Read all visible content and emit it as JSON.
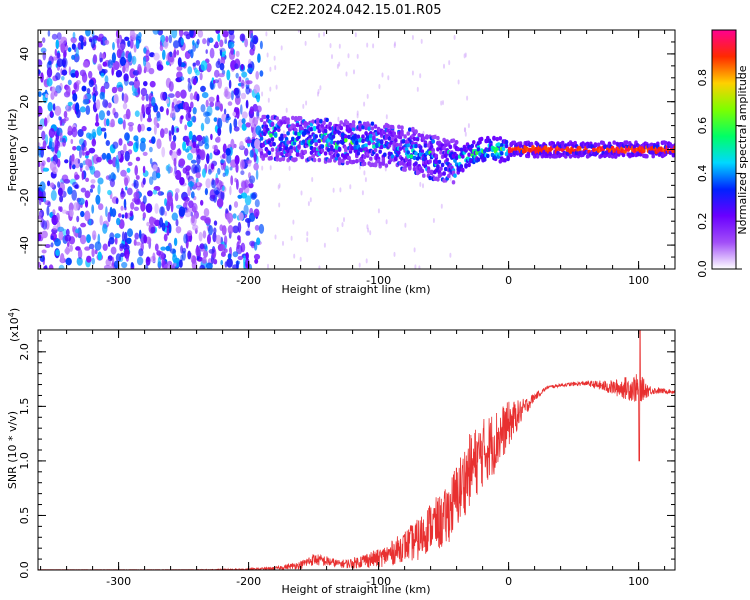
{
  "title": "C2E2.2024.042.15.01.R05",
  "chart_data": [
    {
      "type": "heatmap",
      "xlabel": "Height of straight line (km)",
      "ylabel": "Frequency (Hz)",
      "xlim": [
        -362,
        128
      ],
      "ylim": [
        -50,
        50
      ],
      "xticks": [
        -300,
        -200,
        -100,
        0,
        100
      ],
      "yticks": [
        -40,
        -20,
        0,
        20,
        40
      ],
      "colorbar": {
        "label": "Normalized spectral amplitude",
        "ticks": [
          "0.0",
          "0.2",
          "0.4",
          "0.6",
          "0.8"
        ],
        "range": [
          0,
          1
        ],
        "colors": [
          "#ffffff",
          "#a24ff8",
          "#6a00ff",
          "#0022ff",
          "#00d8ff",
          "#00ff66",
          "#7dff00",
          "#ffd000",
          "#ff2a00",
          "#ff0090"
        ]
      },
      "regions": [
        {
          "name": "noise",
          "x": [
            -362,
            -190
          ],
          "freq_range": [
            -50,
            50
          ],
          "amplitude": 0.15
        },
        {
          "name": "signal",
          "x": [
            -190,
            128
          ],
          "freq_center": [
            5,
            4,
            2,
            0,
            -4,
            -5,
            0,
            0,
            0
          ],
          "freq_center_x": [
            -190,
            -150,
            -100,
            -75,
            -55,
            -40,
            -20,
            0,
            128
          ],
          "amplitude_peak": 0.9
        }
      ]
    },
    {
      "type": "line",
      "xlabel": "Height of straight line (km)",
      "ylabel": "SNR (10 * v/v)",
      "multiplier": "(x10",
      "multiplier_exp": "4",
      "xlim": [
        -362,
        128
      ],
      "ylim": [
        0,
        2.2
      ],
      "xticks": [
        -300,
        -200,
        -100,
        0,
        100
      ],
      "yticks": [
        "0.0",
        "0.5",
        "1.0",
        "1.5",
        "2.0"
      ],
      "color": "#e83030",
      "series": [
        {
          "x": [
            -362,
            -300,
            -250,
            -200,
            -180,
            -160,
            -150,
            -140,
            -130,
            -120,
            -110,
            -100,
            -90,
            -80,
            -70,
            -60,
            -50,
            -40,
            -30,
            -20,
            -10,
            0,
            10,
            20,
            30,
            40,
            60,
            80,
            100,
            110,
            128
          ],
          "values": [
            0.0,
            0.0,
            0.0,
            0.01,
            0.02,
            0.06,
            0.12,
            0.1,
            0.07,
            0.08,
            0.12,
            0.14,
            0.2,
            0.28,
            0.35,
            0.5,
            0.55,
            0.8,
            1.05,
            1.2,
            1.3,
            1.42,
            1.5,
            1.6,
            1.68,
            1.7,
            1.72,
            1.7,
            1.72,
            1.66,
            1.64
          ],
          "noise": [
            0.0,
            0.004,
            0.005,
            0.01,
            0.02,
            0.05,
            0.08,
            0.07,
            0.05,
            0.07,
            0.1,
            0.12,
            0.16,
            0.2,
            0.28,
            0.32,
            0.38,
            0.45,
            0.48,
            0.45,
            0.42,
            0.3,
            0.15,
            0.05,
            0.02,
            0.02,
            0.03,
            0.1,
            0.2,
            0.05,
            0.02
          ]
        }
      ]
    }
  ]
}
